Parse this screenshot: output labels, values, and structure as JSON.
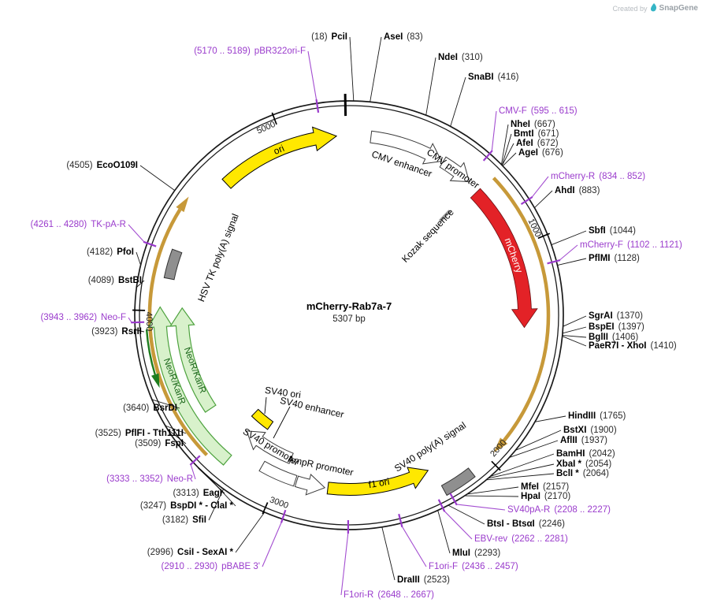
{
  "brand": {
    "credit": "Created by",
    "name": "SnapGene"
  },
  "plasmid": {
    "title": "mCherry-Rab7a-7",
    "length": "5307 bp"
  },
  "ticks": [
    "1000",
    "2000",
    "3000",
    "4000",
    "5000"
  ],
  "features": [
    {
      "label": "ori"
    },
    {
      "label": "CMV enhancer"
    },
    {
      "label": "CMV promoter"
    },
    {
      "label": "Kozak sequence"
    },
    {
      "label": "mCherry"
    },
    {
      "label": "SV40 poly(A) signal"
    },
    {
      "label": "f1 ori"
    },
    {
      "label": "AmpR promoter"
    },
    {
      "label": "SV40 promoter"
    },
    {
      "label": "SV40 enhancer"
    },
    {
      "label": "SV40 ori"
    },
    {
      "label": "NeoR/KanR"
    },
    {
      "label": "NeoR/KanR"
    },
    {
      "label": "HSV TK poly(A) signal"
    }
  ],
  "sites": [
    {
      "type": "enzyme",
      "name": "PciI",
      "pos": "(18)"
    },
    {
      "type": "enzyme",
      "name": "AseI",
      "pos": "(83)"
    },
    {
      "type": "enzyme",
      "name": "NdeI",
      "pos": "(310)"
    },
    {
      "type": "enzyme",
      "name": "SnaBI",
      "pos": "(416)"
    },
    {
      "type": "primer",
      "name": "CMV-F",
      "pos": "(595 .. 615)"
    },
    {
      "type": "enzyme",
      "name": "NheI",
      "pos": "(667)"
    },
    {
      "type": "enzyme",
      "name": "BmtI",
      "pos": "(671)"
    },
    {
      "type": "enzyme",
      "name": "AfeI",
      "pos": "(672)"
    },
    {
      "type": "enzyme",
      "name": "AgeI",
      "pos": "(676)"
    },
    {
      "type": "primer",
      "name": "mCherry-R",
      "pos": "(834 .. 852)"
    },
    {
      "type": "enzyme",
      "name": "AhdI",
      "pos": "(883)"
    },
    {
      "type": "enzyme",
      "name": "SbfI",
      "pos": "(1044)"
    },
    {
      "type": "primer",
      "name": "mCherry-F",
      "pos": "(1102 .. 1121)"
    },
    {
      "type": "enzyme",
      "name": "PflMI",
      "pos": "(1128)"
    },
    {
      "type": "enzyme",
      "name": "SgrAI",
      "pos": "(1370)"
    },
    {
      "type": "enzyme",
      "name": "BspEI",
      "pos": "(1397)"
    },
    {
      "type": "enzyme",
      "name": "BglII",
      "pos": "(1406)"
    },
    {
      "type": "enzyme",
      "name": "PaeR7I - XhoI",
      "pos": "(1410)"
    },
    {
      "type": "enzyme",
      "name": "HindIII",
      "pos": "(1765)"
    },
    {
      "type": "enzyme",
      "name": "BstXI",
      "pos": "(1900)"
    },
    {
      "type": "enzyme",
      "name": "AflII",
      "pos": "(1937)"
    },
    {
      "type": "enzyme",
      "name": "BamHI",
      "pos": "(2042)"
    },
    {
      "type": "enzyme",
      "name": "XbaI *",
      "pos": "(2054)"
    },
    {
      "type": "enzyme",
      "name": "BclI *",
      "pos": "(2064)"
    },
    {
      "type": "enzyme",
      "name": "MfeI",
      "pos": "(2157)"
    },
    {
      "type": "enzyme",
      "name": "HpaI",
      "pos": "(2170)"
    },
    {
      "type": "primer",
      "name": "SV40pA-R",
      "pos": "(2208 .. 2227)"
    },
    {
      "type": "enzyme",
      "name": "BtsI - BtsαI",
      "pos": "(2246)"
    },
    {
      "type": "primer",
      "name": "EBV-rev",
      "pos": "(2262 .. 2281)"
    },
    {
      "type": "enzyme",
      "name": "MluI",
      "pos": "(2293)"
    },
    {
      "type": "primer",
      "name": "F1ori-F",
      "pos": "(2436 .. 2457)"
    },
    {
      "type": "enzyme",
      "name": "DraIII",
      "pos": "(2523)"
    },
    {
      "type": "primer",
      "name": "F1ori-R",
      "pos": "(2648 .. 2667)"
    },
    {
      "type": "primer",
      "name": "pBABE 3'",
      "pos": "(2910 .. 2930)"
    },
    {
      "type": "enzyme",
      "name": "CsiI - SexAI *",
      "pos": "(2996)"
    },
    {
      "type": "enzyme",
      "name": "SfiI",
      "pos": "(3182)"
    },
    {
      "type": "enzyme",
      "name": "BspDI * - ClaI *",
      "pos": "(3247)"
    },
    {
      "type": "enzyme",
      "name": "EagI",
      "pos": "(3313)"
    },
    {
      "type": "primer",
      "name": "Neo-R",
      "pos": "(3333 .. 3352)"
    },
    {
      "type": "enzyme",
      "name": "FspI",
      "pos": "(3509)"
    },
    {
      "type": "enzyme",
      "name": "PflFI - Tth111I",
      "pos": "(3525)"
    },
    {
      "type": "enzyme",
      "name": "BsrDI",
      "pos": "(3640)"
    },
    {
      "type": "enzyme",
      "name": "RsrII",
      "pos": "(3923)"
    },
    {
      "type": "primer",
      "name": "Neo-F",
      "pos": "(3943 .. 3962)"
    },
    {
      "type": "enzyme",
      "name": "BstBI",
      "pos": "(4089)"
    },
    {
      "type": "enzyme",
      "name": "PfoI",
      "pos": "(4182)"
    },
    {
      "type": "primer",
      "name": "TK-pA-R",
      "pos": "(4261 .. 4280)"
    },
    {
      "type": "enzyme",
      "name": "EcoO109I",
      "pos": "(4505)"
    },
    {
      "type": "primer",
      "name": "pBR322ori-F",
      "pos": "(5170 .. 5189)"
    }
  ],
  "colors": {
    "primer": "#9a3bcc",
    "backbone": "#1a1a1a",
    "gold": "#c79939",
    "yellow": "#ffe800",
    "red": "#e32227",
    "green_fill": "#d8f1cb",
    "green_stroke": "#4da23e",
    "green_dark": "#1e7d1e",
    "gray_box": "#8f8f8f"
  }
}
